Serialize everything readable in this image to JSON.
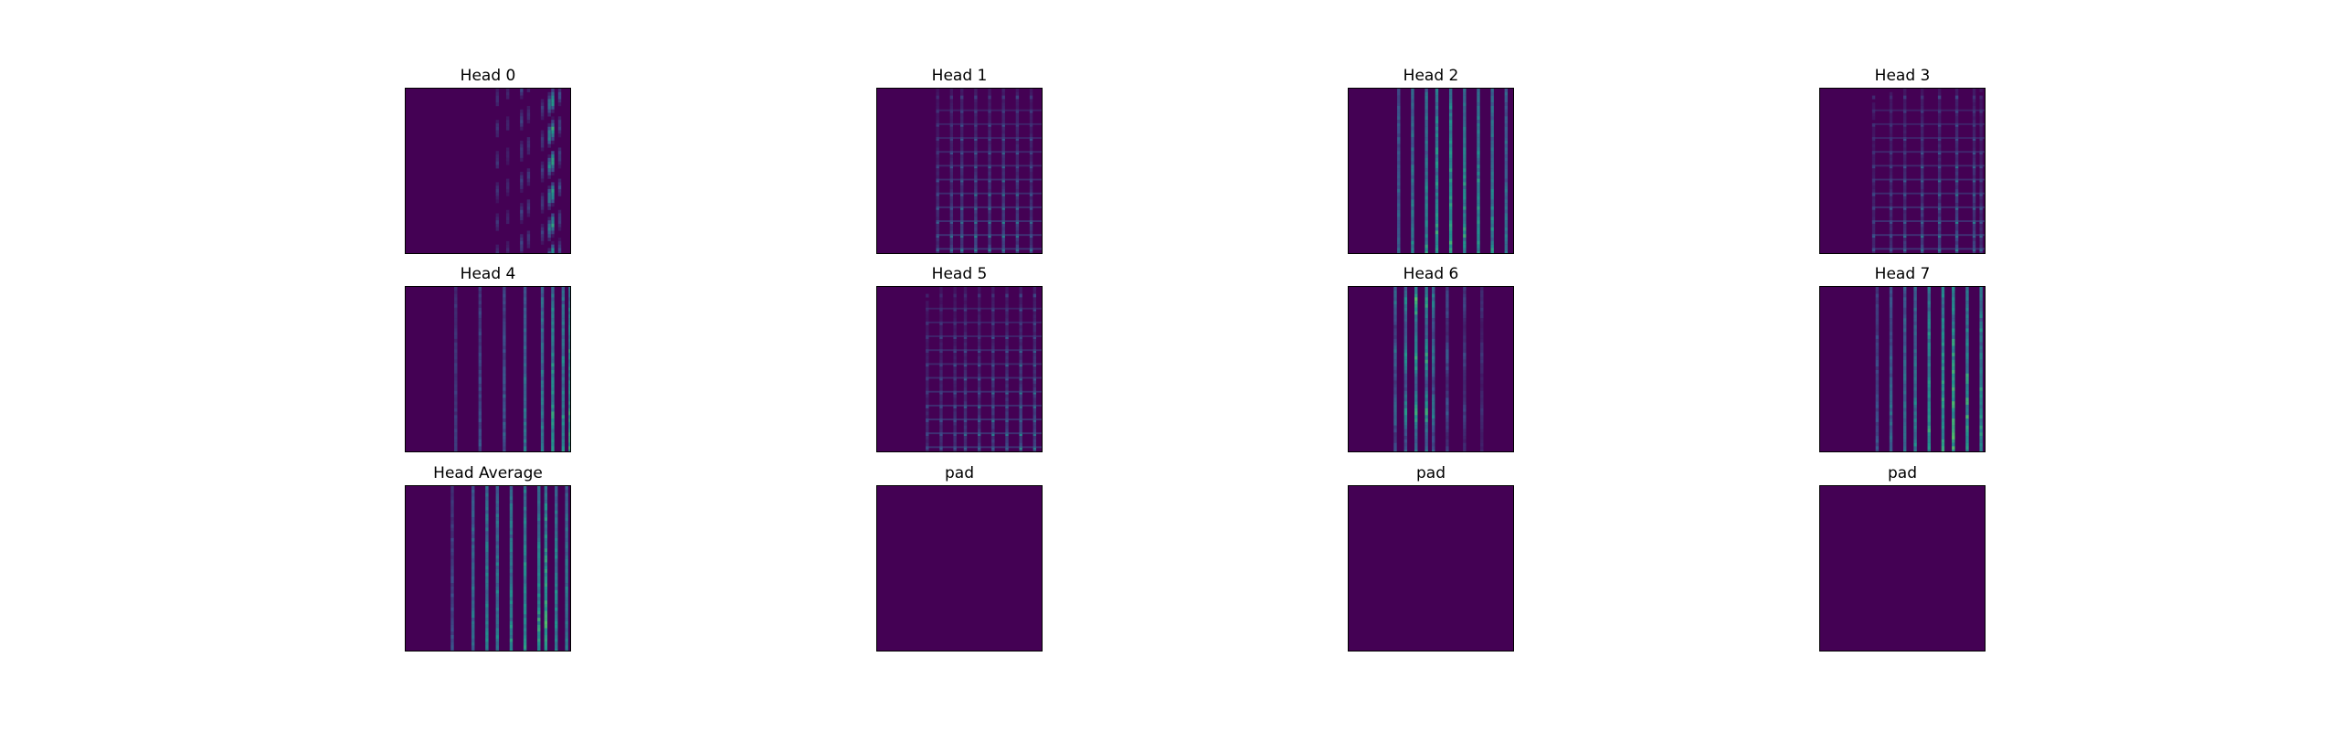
{
  "chart_data": [
    {
      "type": "heatmap",
      "title": "Head 0",
      "colormap": "viridis",
      "pattern": "sparse-right-columns",
      "columns": [
        {
          "x": 0.56,
          "v": 0.15
        },
        {
          "x": 0.62,
          "v": 0.1
        },
        {
          "x": 0.7,
          "v": 0.2
        },
        {
          "x": 0.74,
          "v": 0.15
        },
        {
          "x": 0.82,
          "v": 0.18
        },
        {
          "x": 0.86,
          "v": 0.4
        },
        {
          "x": 0.88,
          "v": 0.55
        },
        {
          "x": 0.92,
          "v": 0.2
        }
      ]
    },
    {
      "type": "heatmap",
      "title": "Head 1",
      "colormap": "viridis",
      "pattern": "grid",
      "columns": [
        {
          "x": 0.36,
          "v": 0.3
        },
        {
          "x": 0.44,
          "v": 0.35
        },
        {
          "x": 0.52,
          "v": 0.4
        },
        {
          "x": 0.6,
          "v": 0.45
        },
        {
          "x": 0.68,
          "v": 0.4
        },
        {
          "x": 0.76,
          "v": 0.45
        },
        {
          "x": 0.84,
          "v": 0.4
        },
        {
          "x": 0.92,
          "v": 0.35
        }
      ]
    },
    {
      "type": "heatmap",
      "title": "Head 2",
      "colormap": "viridis",
      "pattern": "stripes",
      "columns": [
        {
          "x": 0.3,
          "v": 0.35
        },
        {
          "x": 0.38,
          "v": 0.45
        },
        {
          "x": 0.46,
          "v": 0.5
        },
        {
          "x": 0.54,
          "v": 0.55
        },
        {
          "x": 0.62,
          "v": 0.6
        },
        {
          "x": 0.7,
          "v": 0.55
        },
        {
          "x": 0.78,
          "v": 0.55
        },
        {
          "x": 0.86,
          "v": 0.5
        },
        {
          "x": 0.94,
          "v": 0.4
        }
      ]
    },
    {
      "type": "heatmap",
      "title": "Head 3",
      "colormap": "viridis",
      "pattern": "grid",
      "columns": [
        {
          "x": 0.32,
          "v": 0.25
        },
        {
          "x": 0.42,
          "v": 0.3
        },
        {
          "x": 0.52,
          "v": 0.35
        },
        {
          "x": 0.62,
          "v": 0.4
        },
        {
          "x": 0.72,
          "v": 0.4
        },
        {
          "x": 0.82,
          "v": 0.45
        },
        {
          "x": 0.92,
          "v": 0.4
        },
        {
          "x": 0.97,
          "v": 0.3
        }
      ]
    },
    {
      "type": "heatmap",
      "title": "Head 4",
      "colormap": "viridis",
      "pattern": "stripes",
      "columns": [
        {
          "x": 0.3,
          "v": 0.2
        },
        {
          "x": 0.45,
          "v": 0.25
        },
        {
          "x": 0.6,
          "v": 0.3
        },
        {
          "x": 0.72,
          "v": 0.4
        },
        {
          "x": 0.82,
          "v": 0.45
        },
        {
          "x": 0.88,
          "v": 0.55
        },
        {
          "x": 0.94,
          "v": 0.5
        },
        {
          "x": 0.98,
          "v": 0.6
        }
      ]
    },
    {
      "type": "heatmap",
      "title": "Head 5",
      "colormap": "viridis",
      "pattern": "grid",
      "columns": [
        {
          "x": 0.3,
          "v": 0.25
        },
        {
          "x": 0.38,
          "v": 0.3
        },
        {
          "x": 0.46,
          "v": 0.3
        },
        {
          "x": 0.54,
          "v": 0.35
        },
        {
          "x": 0.62,
          "v": 0.35
        },
        {
          "x": 0.7,
          "v": 0.4
        },
        {
          "x": 0.78,
          "v": 0.4
        },
        {
          "x": 0.86,
          "v": 0.45
        },
        {
          "x": 0.94,
          "v": 0.45
        }
      ]
    },
    {
      "type": "heatmap",
      "title": "Head 6",
      "colormap": "viridis",
      "pattern": "left-stripes",
      "columns": [
        {
          "x": 0.28,
          "v": 0.35
        },
        {
          "x": 0.34,
          "v": 0.45
        },
        {
          "x": 0.4,
          "v": 0.6
        },
        {
          "x": 0.46,
          "v": 0.55
        },
        {
          "x": 0.52,
          "v": 0.4
        },
        {
          "x": 0.6,
          "v": 0.25
        },
        {
          "x": 0.7,
          "v": 0.2
        },
        {
          "x": 0.8,
          "v": 0.15
        }
      ]
    },
    {
      "type": "heatmap",
      "title": "Head 7",
      "colormap": "viridis",
      "pattern": "stripes",
      "columns": [
        {
          "x": 0.34,
          "v": 0.25
        },
        {
          "x": 0.42,
          "v": 0.35
        },
        {
          "x": 0.5,
          "v": 0.4
        },
        {
          "x": 0.58,
          "v": 0.45
        },
        {
          "x": 0.66,
          "v": 0.55
        },
        {
          "x": 0.74,
          "v": 0.6
        },
        {
          "x": 0.8,
          "v": 0.65
        },
        {
          "x": 0.88,
          "v": 0.6
        },
        {
          "x": 0.96,
          "v": 0.55
        }
      ]
    },
    {
      "type": "heatmap",
      "title": "Head Average",
      "colormap": "viridis",
      "pattern": "stripes",
      "columns": [
        {
          "x": 0.28,
          "v": 0.25
        },
        {
          "x": 0.4,
          "v": 0.4
        },
        {
          "x": 0.48,
          "v": 0.5
        },
        {
          "x": 0.56,
          "v": 0.45
        },
        {
          "x": 0.64,
          "v": 0.5
        },
        {
          "x": 0.72,
          "v": 0.55
        },
        {
          "x": 0.8,
          "v": 0.55
        },
        {
          "x": 0.84,
          "v": 0.65
        },
        {
          "x": 0.9,
          "v": 0.5
        },
        {
          "x": 0.96,
          "v": 0.45
        }
      ]
    },
    {
      "type": "heatmap",
      "title": "pad",
      "colormap": "viridis",
      "pattern": "empty",
      "columns": []
    },
    {
      "type": "heatmap",
      "title": "pad",
      "colormap": "viridis",
      "pattern": "empty",
      "columns": []
    },
    {
      "type": "heatmap",
      "title": "pad",
      "colormap": "viridis",
      "pattern": "empty",
      "columns": []
    }
  ]
}
